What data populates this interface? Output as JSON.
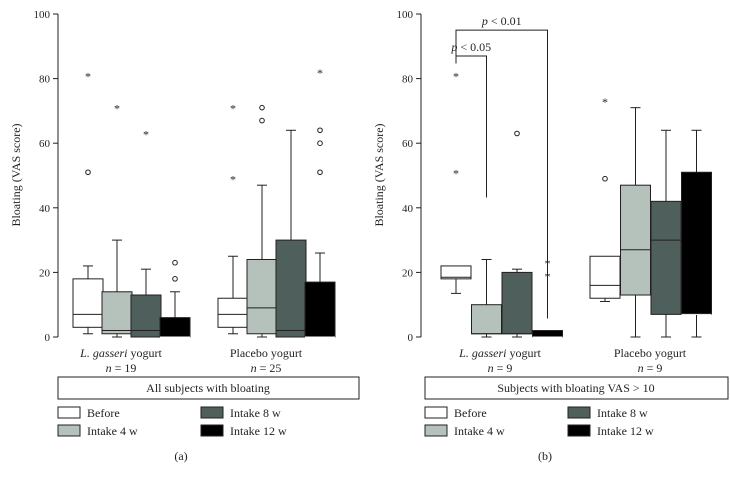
{
  "colors": {
    "before": "#ffffff",
    "intake4": "#b5c2bb",
    "intake8": "#4f605c",
    "intake12": "#000000",
    "ink": "#231f20"
  },
  "legend": [
    {
      "key": "before",
      "label": "Before"
    },
    {
      "key": "intake4",
      "label": "Intake 4 w"
    },
    {
      "key": "intake8",
      "label": "Intake 8 w"
    },
    {
      "key": "intake12",
      "label": "Intake 12 w"
    }
  ],
  "chart_data": [
    {
      "type": "boxplot",
      "panel_label": "(a)",
      "ylabel": "Bloating (VAS score)",
      "ylim": [
        0,
        100
      ],
      "yticks": [
        "0",
        "20",
        "40",
        "60",
        "80",
        "100"
      ],
      "subtitle": "All subjects with bloating",
      "groups": [
        {
          "name_italic": "L. gasseri",
          "name_rest": " yogurt",
          "n_label": "n",
          "n_value": "= 19",
          "boxes": [
            {
              "series": "before",
              "q1": 3,
              "median": 7,
              "q3": 18,
              "whisker_low": 1,
              "whisker_high": 22,
              "outliers": [
                51
              ],
              "extremes": [
                81
              ]
            },
            {
              "series": "intake4",
              "q1": 1,
              "median": 2,
              "q3": 14,
              "whisker_low": 0,
              "whisker_high": 30,
              "outliers": [],
              "extremes": [
                71
              ]
            },
            {
              "series": "intake8",
              "q1": 0,
              "median": 2,
              "q3": 13,
              "whisker_low": 0,
              "whisker_high": 21,
              "outliers": [],
              "extremes": [
                63
              ]
            },
            {
              "series": "intake12",
              "q1": 0,
              "median": 0,
              "q3": 6,
              "whisker_low": 0,
              "whisker_high": 14,
              "outliers": [
                18,
                23
              ],
              "extremes": []
            }
          ]
        },
        {
          "name_italic": "",
          "name_rest": "Placebo yogurt",
          "n_label": "n",
          "n_value": "= 25",
          "boxes": [
            {
              "series": "before",
              "q1": 3,
              "median": 7,
              "q3": 12,
              "whisker_low": 1,
              "whisker_high": 25,
              "outliers": [],
              "extremes": [
                49,
                71
              ]
            },
            {
              "series": "intake4",
              "q1": 1,
              "median": 9,
              "q3": 24,
              "whisker_low": 0,
              "whisker_high": 47,
              "outliers": [
                67,
                71
              ],
              "extremes": []
            },
            {
              "series": "intake8",
              "q1": 0,
              "median": 2,
              "q3": 30,
              "whisker_low": 0,
              "whisker_high": 64,
              "outliers": [],
              "extremes": []
            },
            {
              "series": "intake12",
              "q1": 0,
              "median": 0,
              "q3": 17,
              "whisker_low": 0,
              "whisker_high": 26,
              "outliers": [
                51,
                60,
                64
              ],
              "extremes": [
                82
              ]
            }
          ]
        }
      ]
    },
    {
      "type": "boxplot",
      "panel_label": "(b)",
      "ylabel": "Bloating (VAS score)",
      "ylim": [
        0,
        100
      ],
      "yticks": [
        "0",
        "20",
        "40",
        "60",
        "80",
        "100"
      ],
      "subtitle": "Subjects with bloating VAS  > 10",
      "groups": [
        {
          "name_italic": "L. gasseri",
          "name_rest": " yogurt",
          "n_label": "n",
          "n_value": "= 9",
          "boxes": [
            {
              "series": "before",
              "q1": 18,
              "median": 18.5,
              "q3": 22,
              "whisker_low": 13.5,
              "whisker_high": 22,
              "outliers": [],
              "extremes": [
                51,
                81
              ]
            },
            {
              "series": "intake4",
              "q1": 1,
              "median": 1,
              "q3": 10,
              "whisker_low": 0,
              "whisker_high": 24,
              "outliers": [],
              "extremes": []
            },
            {
              "series": "intake8",
              "q1": 1,
              "median": 1,
              "q3": 20,
              "whisker_low": 0,
              "whisker_high": 21,
              "outliers": [
                63
              ],
              "extremes": []
            },
            {
              "series": "intake12",
              "q1": 0,
              "median": 0,
              "q3": 2,
              "whisker_low": 0,
              "whisker_high": 2,
              "outliers": [],
              "extremes": [
                19,
                23
              ]
            }
          ]
        },
        {
          "name_italic": "",
          "name_rest": "Placebo yogurt",
          "n_label": "n",
          "n_value": "= 9",
          "boxes": [
            {
              "series": "before",
              "q1": 12,
              "median": 16,
              "q3": 25,
              "whisker_low": 11,
              "whisker_high": 25,
              "outliers": [
                49
              ],
              "extremes": [
                73
              ]
            },
            {
              "series": "intake4",
              "q1": 13,
              "median": 27,
              "q3": 47,
              "whisker_low": 0,
              "whisker_high": 71,
              "outliers": [],
              "extremes": []
            },
            {
              "series": "intake8",
              "q1": 7,
              "median": 30,
              "q3": 42,
              "whisker_low": 0,
              "whisker_high": 64,
              "outliers": [],
              "extremes": []
            },
            {
              "series": "intake12",
              "q1": 7,
              "median": 7,
              "q3": 51,
              "whisker_low": 0,
              "whisker_high": 64,
              "outliers": [],
              "extremes": []
            }
          ]
        }
      ],
      "significance": [
        {
          "label_p": "p",
          "label_rest": " < 0.05",
          "from_series": "before",
          "to_series": "intake4",
          "group": 0,
          "bracket_y": 87
        },
        {
          "label_p": "p",
          "label_rest": " < 0.01",
          "from_series": "before",
          "to_series": "intake12",
          "group": 0,
          "bracket_y": 95
        }
      ]
    }
  ]
}
